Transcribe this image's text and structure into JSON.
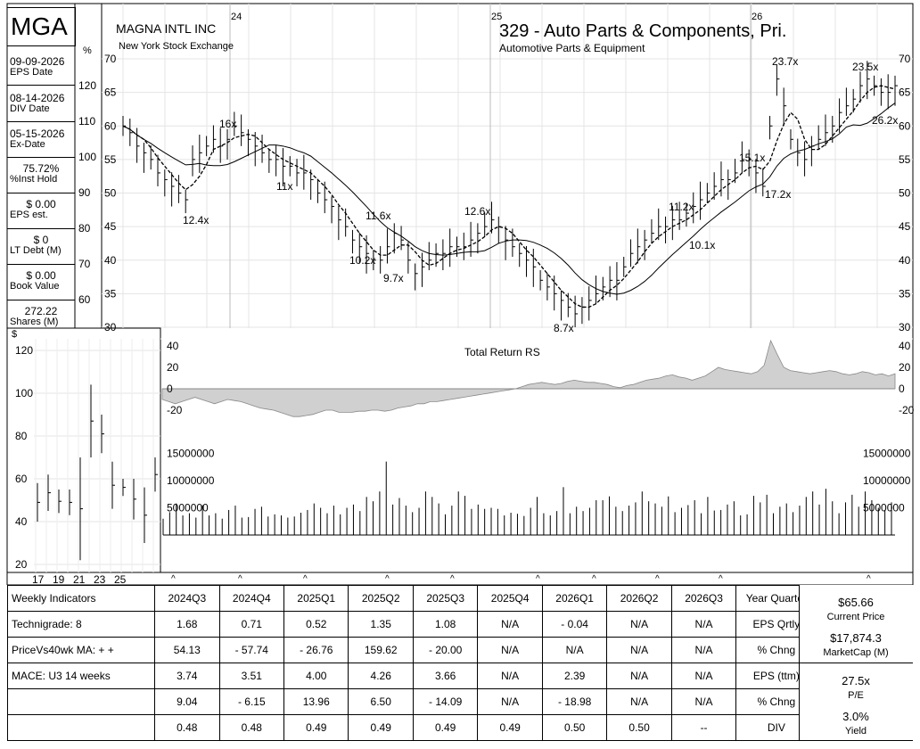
{
  "ticker": "MGA",
  "company": "MAGNA INTL INC",
  "exchange": "New York Stock Exchange",
  "industry_title": "329 - Auto Parts & Components, Pri.",
  "industry_sub": "Automotive Parts & Equipment",
  "left_panel": [
    {
      "value": "09-09-2026",
      "label": "EPS Date"
    },
    {
      "value": "08-14-2026",
      "label": "DIV Date"
    },
    {
      "value": "05-15-2026",
      "label": "Ex-Date"
    },
    {
      "value": "75.72%",
      "label": "%Inst Hold"
    },
    {
      "value": "$ 0.00",
      "label": "EPS est."
    },
    {
      "value": "$ 0",
      "label": "LT Debt (M)"
    },
    {
      "value": "$ 0.00",
      "label": "Book Value"
    },
    {
      "value": "272.22",
      "label": "Shares (M)"
    }
  ],
  "labels": {
    "pct_sign": "%",
    "dollar_sign": "$",
    "total_return": "Total Return RS",
    "caret": "^"
  },
  "chart_data": [
    {
      "type": "line",
      "name": "price",
      "y_range": [
        30,
        70
      ],
      "y_ticks": [
        30,
        35,
        40,
        45,
        50,
        55,
        60,
        65,
        70
      ],
      "pct_ticks": [
        60,
        70,
        80,
        90,
        100,
        110,
        120
      ],
      "year_labels": [
        "24",
        "25",
        "26"
      ],
      "pe_annotations": [
        "12.4x",
        "16x",
        "11x",
        "10.2x",
        "11.6x",
        "9.7x",
        "12.6x",
        "8.7x",
        "11.2x",
        "10.1x",
        "15.1x",
        "17.2x",
        "23.7x",
        "23.5x",
        "26.2x"
      ],
      "price": [
        60,
        59,
        57,
        56,
        55,
        53,
        52,
        51,
        50,
        49,
        55,
        56,
        57,
        58,
        57,
        58,
        60,
        59,
        58,
        57,
        56,
        55,
        55,
        54,
        54,
        53,
        53,
        52,
        50,
        49,
        48,
        46,
        45,
        43,
        42,
        41,
        40,
        40,
        42,
        44,
        43,
        40,
        38,
        39,
        40,
        41,
        41,
        42,
        42,
        42,
        43,
        44,
        45,
        46,
        45,
        43,
        42,
        41,
        40,
        39,
        37,
        36,
        35,
        34,
        33,
        32,
        33,
        34,
        35,
        36,
        37,
        37,
        39,
        41,
        42,
        43,
        44,
        45,
        45,
        46,
        46,
        47,
        48,
        49,
        50,
        51,
        52,
        52,
        53,
        55,
        55,
        53,
        51,
        60,
        67,
        63,
        58,
        56,
        55,
        57,
        58,
        59,
        60,
        62,
        63,
        64,
        66,
        67,
        66,
        65,
        65,
        66
      ]
    },
    {
      "type": "area",
      "name": "Total Return RS",
      "y_range": [
        -25,
        45
      ],
      "y_ticks": [
        -20,
        0,
        20,
        40
      ],
      "values": [
        -10,
        -12,
        -14,
        -12,
        -10,
        -8,
        -10,
        -12,
        -14,
        -12,
        -10,
        -11,
        -12,
        -14,
        -16,
        -18,
        -19,
        -20,
        -22,
        -24,
        -26,
        -26,
        -25,
        -24,
        -22,
        -20,
        -20,
        -22,
        -22,
        -22,
        -21,
        -21,
        -20,
        -20,
        -21,
        -20,
        -18,
        -17,
        -16,
        -14,
        -14,
        -12,
        -12,
        -11,
        -10,
        -9,
        -8,
        -7,
        -6,
        -5,
        -4,
        -3,
        -2,
        -1,
        0,
        2,
        4,
        5,
        6,
        5,
        4,
        5,
        7,
        8,
        7,
        6,
        6,
        5,
        4,
        2,
        1,
        3,
        4,
        6,
        8,
        9,
        10,
        12,
        13,
        11,
        10,
        8,
        10,
        12,
        16,
        20,
        18,
        17,
        16,
        15,
        14,
        16,
        22,
        45,
        32,
        20,
        17,
        16,
        15,
        14,
        15,
        16,
        17,
        16,
        14,
        13,
        14,
        16,
        15,
        13,
        14,
        12,
        14
      ]
    },
    {
      "type": "bar",
      "name": "Volume",
      "y_range": [
        0,
        18000000
      ],
      "y_ticks": [
        5000000,
        10000000,
        15000000
      ],
      "values": [
        3.0,
        4.2,
        5.8,
        3.6,
        4.0,
        3.2,
        5.5,
        3.6,
        4.0,
        3.0,
        4.6,
        5.4,
        3.2,
        3.3,
        4.8,
        5.2,
        3.4,
        3.8,
        3.6,
        3.2,
        3.4,
        4.1,
        4.6,
        5.8,
        5.0,
        4.0,
        5.4,
        3.8,
        5.0,
        5.6,
        4.4,
        7.0,
        6.2,
        8.0,
        13.5,
        5.6,
        6.8,
        5.4,
        4.2,
        5.0,
        8.0,
        7.0,
        5.8,
        3.8,
        5.4,
        8.0,
        7.2,
        4.8,
        5.6,
        4.8,
        5.0,
        4.8,
        3.6,
        4.1,
        3.9,
        3.5,
        5.0,
        7.0,
        4.0,
        3.6,
        4.4,
        8.8,
        4.0,
        5.2,
        4.4,
        5.0,
        6.4,
        6.4,
        7.1,
        5.2,
        4.4,
        5.4,
        6.0,
        8.0,
        6.2,
        5.8,
        5.2,
        7.1,
        4.2,
        5.0,
        5.5,
        6.4,
        4.0,
        7.0,
        4.5,
        4.6,
        5.6,
        6.2,
        3.6,
        3.8,
        7.2,
        6.0,
        7.4,
        4.0,
        5.2,
        5.8,
        4.2,
        5.4,
        7.0,
        8.0,
        5.6,
        8.5,
        6.2,
        4.0,
        6.0,
        7.4,
        5.2,
        8.0,
        6.4,
        5.0,
        4.6,
        6.0
      ]
    },
    {
      "type": "bar",
      "name": "dividend",
      "x_ticks": [
        "17",
        "19",
        "21",
        "23",
        "25"
      ],
      "y_range": [
        18,
        125
      ],
      "y_ticks": [
        20,
        40,
        60,
        80,
        100,
        120
      ],
      "bars": [
        [
          40,
          58
        ],
        [
          45,
          62
        ],
        [
          44,
          55
        ],
        [
          43,
          55
        ],
        [
          22,
          70
        ],
        [
          70,
          104
        ],
        [
          72,
          90
        ],
        [
          46,
          68
        ],
        [
          52,
          60
        ],
        [
          41,
          60
        ],
        [
          30,
          56
        ],
        [
          54,
          70
        ]
      ]
    }
  ],
  "table": {
    "columns": [
      "Weekly Indicators",
      "2024Q3",
      "2024Q4",
      "2025Q1",
      "2025Q2",
      "2025Q3",
      "2025Q4",
      "2026Q1",
      "2026Q2",
      "2026Q3",
      "Year Quarter"
    ],
    "rows": [
      {
        "label": "Technigrade: 8",
        "cells": [
          "1.68",
          "0.71",
          "0.52",
          "1.35",
          "1.08",
          "N/A",
          "- 0.04",
          "N/A",
          "N/A"
        ],
        "metric": "EPS Qrtly"
      },
      {
        "label": "PriceVs40wk MA:  + +",
        "cells": [
          "54.13",
          "- 57.74",
          "- 26.76",
          "159.62",
          "- 20.00",
          "N/A",
          "N/A",
          "N/A",
          "N/A"
        ],
        "metric": "% Chng"
      },
      {
        "label": "MACE: U3  14 weeks",
        "cells": [
          "3.74",
          "3.51",
          "4.00",
          "4.26",
          "3.66",
          "N/A",
          "2.39",
          "N/A",
          "N/A"
        ],
        "metric": "EPS (ttm)"
      },
      {
        "label": "",
        "cells": [
          "9.04",
          "- 6.15",
          "13.96",
          "6.50",
          "- 14.09",
          "N/A",
          "- 18.98",
          "N/A",
          "N/A"
        ],
        "metric": "% Chng"
      },
      {
        "label": "",
        "cells": [
          "0.48",
          "0.48",
          "0.49",
          "0.49",
          "0.49",
          "0.49",
          "0.50",
          "0.50",
          "--"
        ],
        "metric": "DIV"
      }
    ]
  },
  "right_panel": {
    "price_value": "$65.66",
    "price_label": "Current Price",
    "mcap_value": "$17,874.3",
    "mcap_label": "MarketCap (M)",
    "pe_value": "27.5x",
    "pe_label": "P/E",
    "yield_value": "3.0%",
    "yield_label": "Yield"
  }
}
